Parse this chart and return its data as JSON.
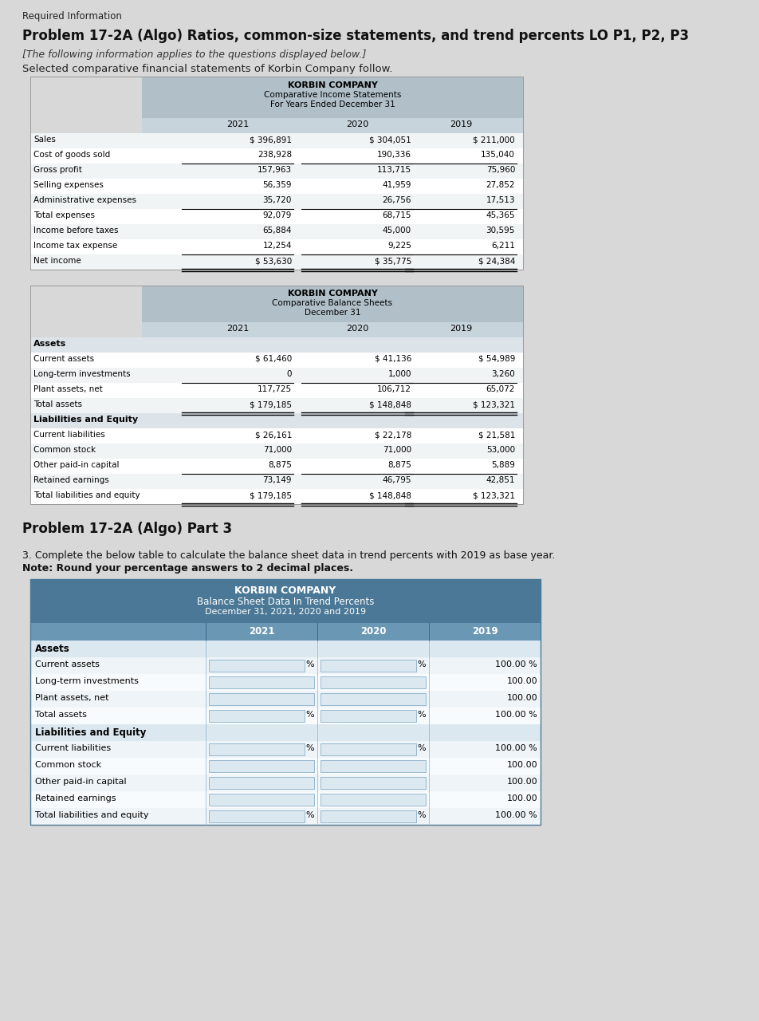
{
  "page_title": "Required Information",
  "problem_title": "Problem 17-2A (Algo) Ratios, common-size statements, and trend percents LO P1, P2, P3",
  "intro_italic": "[The following information applies to the questions displayed below.]",
  "intro_text": "Selected comparative financial statements of Korbin Company follow.",
  "income_title1": "KORBIN COMPANY",
  "income_title2": "Comparative Income Statements",
  "income_title3": "For Years Ended December 31",
  "income_labels": [
    "Sales",
    "Cost of goods sold",
    "Gross profit",
    "Selling expenses",
    "Administrative expenses",
    "Total expenses",
    "Income before taxes",
    "Income tax expense",
    "Net income"
  ],
  "income_2021": [
    "$ 396,891",
    "238,928",
    "157,963",
    "56,359",
    "35,720",
    "92,079",
    "65,884",
    "12,254",
    "$ 53,630"
  ],
  "income_2020": [
    "$ 304,051",
    "190,336",
    "113,715",
    "41,959",
    "26,756",
    "68,715",
    "45,000",
    "9,225",
    "$ 35,775"
  ],
  "income_2019": [
    "$ 211,000",
    "135,040",
    "75,960",
    "27,852",
    "17,513",
    "45,365",
    "30,595",
    "6,211",
    "$ 24,384"
  ],
  "balance_title1": "KORBIN COMPANY",
  "balance_title2": "Comparative Balance Sheets",
  "balance_title3": "December 31",
  "balance_assets_labels": [
    "Assets",
    "Current assets",
    "Long-term investments",
    "Plant assets, net",
    "Total assets"
  ],
  "balance_liab_labels": [
    "Liabilities and Equity",
    "Current liabilities",
    "Common stock",
    "Other paid-in capital",
    "Retained earnings",
    "Total liabilities and equity"
  ],
  "balance_assets_2021": [
    "",
    "$ 61,460",
    "0",
    "117,725",
    "$ 179,185"
  ],
  "balance_assets_2020": [
    "",
    "$ 41,136",
    "1,000",
    "106,712",
    "$ 148,848"
  ],
  "balance_assets_2019": [
    "",
    "$ 54,989",
    "3,260",
    "65,072",
    "$ 123,321"
  ],
  "balance_liab_2021": [
    "",
    "$ 26,161",
    "71,000",
    "8,875",
    "73,149",
    "$ 179,185"
  ],
  "balance_liab_2020": [
    "",
    "$ 22,178",
    "71,000",
    "8,875",
    "46,795",
    "$ 148,848"
  ],
  "balance_liab_2019": [
    "",
    "$ 21,581",
    "53,000",
    "5,889",
    "42,851",
    "$ 123,321"
  ],
  "part3_title": "Problem 17-2A (Algo) Part 3",
  "part3_instr1": "3. Complete the below table to calculate the balance sheet data in trend percents with 2019 as base year.",
  "part3_instr2": "Note: Round your percentage answers to 2 decimal places.",
  "trend_title1": "KORBIN COMPANY",
  "trend_title2": "Balance Sheet Data In Trend Percents",
  "trend_title3": "December 31, 2021, 2020 and 2019",
  "trend_assets_labels": [
    "Assets",
    "Current assets",
    "Long-term investments",
    "Plant assets, net",
    "Total assets"
  ],
  "trend_liab_labels": [
    "Liabilities and Equity",
    "Current liabilities",
    "Common stock",
    "Other paid-in capital",
    "Retained earnings",
    "Total liabilities and equity"
  ],
  "trend_2019_assets": [
    "",
    "100.00 %",
    "100.00",
    "100.00",
    "100.00 %"
  ],
  "trend_2019_liab": [
    "",
    "100.00 %",
    "100.00",
    "100.00",
    "100.00",
    "100.00 %"
  ],
  "pct_symbol_assets_rows": [
    1,
    4
  ],
  "pct_symbol_liab_rows": [
    1,
    5
  ],
  "bg_color": "#d8d8d8",
  "table_header_bg": "#b0bfc8",
  "table_year_row_bg": "#c8d4dc",
  "table_section_bg": "#dce4ea",
  "row_alt1": "#f0f4f4",
  "row_alt2": "#ffffff",
  "trend_hdr_bg": "#4a7896",
  "trend_yr_bg": "#6a98b4",
  "trend_section_bg": "#dce8f0",
  "trend_row_alt1": "#eef4f8",
  "trend_row_alt2": "#f8fbfd",
  "input_box_bg": "#dce8f0",
  "input_box_border": "#8ab0c8"
}
